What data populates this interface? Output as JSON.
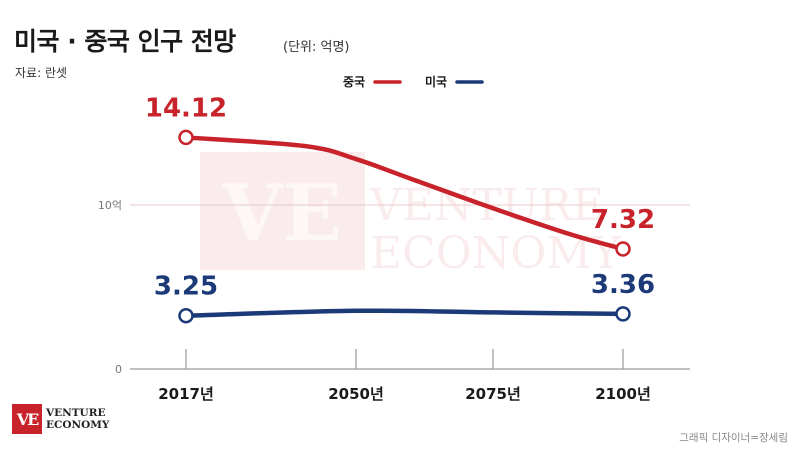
{
  "header": {
    "title": "미국 · 중국 인구 전망",
    "unit": "(단위: 억명)",
    "source": "자료: 란셋"
  },
  "watermark": {
    "mark": "VE",
    "line1": "VENTURE",
    "line2": "ECONOMY"
  },
  "footer": {
    "logo_mark": "VE",
    "logo_line1": "VENTURE",
    "logo_line2": "ECONOMY",
    "credit": "그래픽 디자이너=장세림"
  },
  "colors": {
    "china": "#c8232b",
    "usa": "#1c3a78",
    "axis": "#999999",
    "grid": "#e8c8c8"
  },
  "chart_data": {
    "type": "line",
    "title": "미국 · 중국 인구 전망",
    "x": [
      2017,
      2050,
      2075,
      2100
    ],
    "x_tick_labels": [
      "2017년",
      "2050년",
      "2075년",
      "2100년"
    ],
    "y_tick_labels": [
      "0",
      "10억"
    ],
    "y_ticks": [
      0,
      10
    ],
    "ylim": [
      0,
      16
    ],
    "legend_position": "top-center",
    "series": [
      {
        "name": "중국",
        "color": "#c8232b",
        "x": [
          2017,
          2040,
          2050,
          2060,
          2075,
          2090,
          2100
        ],
        "values": [
          14.12,
          13.6,
          12.8,
          11.6,
          9.8,
          8.2,
          7.32
        ],
        "labels": [
          {
            "x": 2017,
            "text": "14.12"
          },
          {
            "x": 2100,
            "text": "7.32"
          }
        ]
      },
      {
        "name": "미국",
        "color": "#1c3a78",
        "x": [
          2017,
          2050,
          2075,
          2100
        ],
        "values": [
          3.25,
          3.55,
          3.45,
          3.36
        ],
        "labels": [
          {
            "x": 2017,
            "text": "3.25"
          },
          {
            "x": 2100,
            "text": "3.36"
          }
        ]
      }
    ]
  }
}
